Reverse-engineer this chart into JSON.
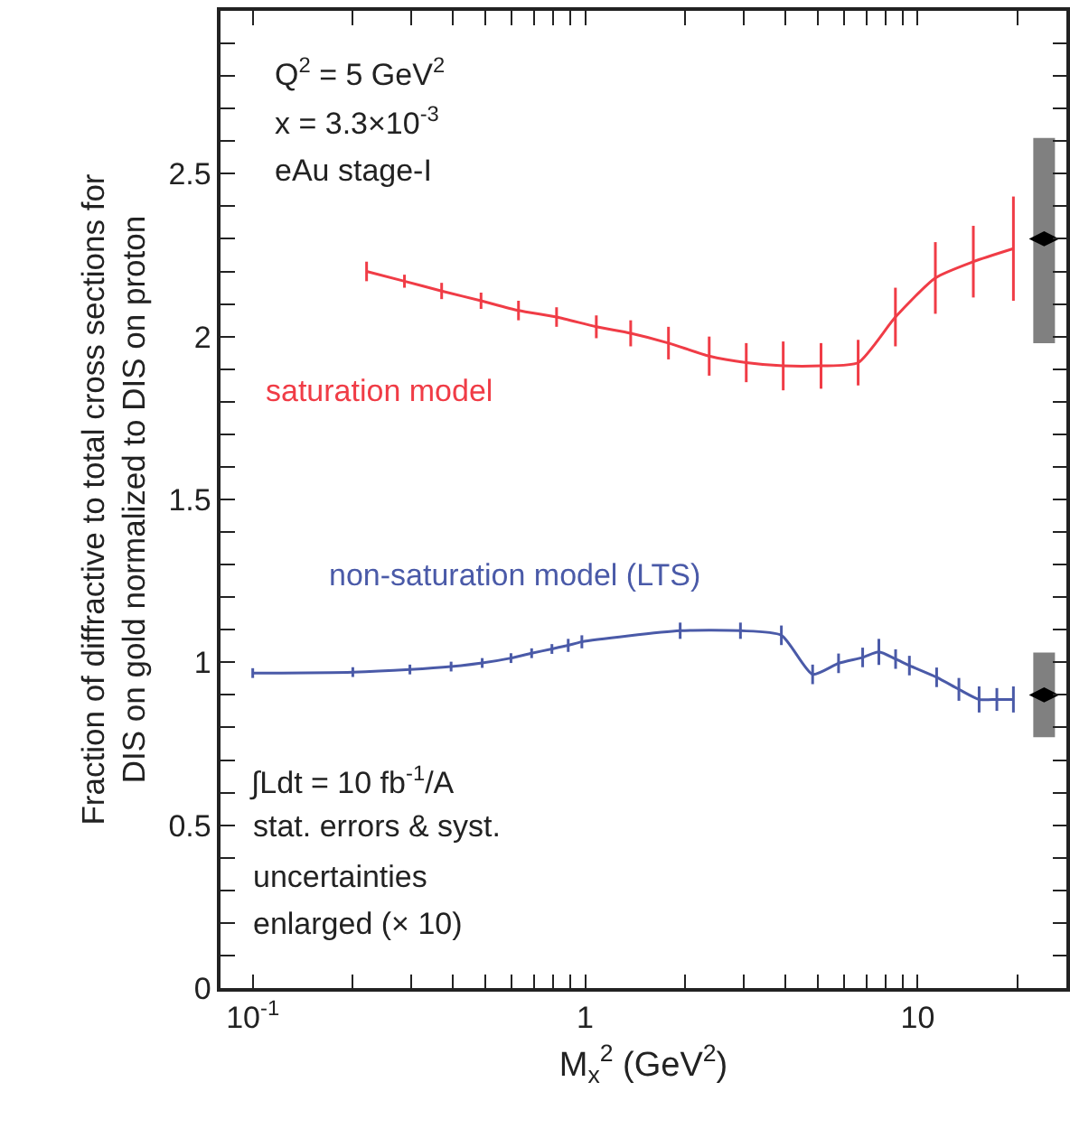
{
  "chart_data": {
    "type": "line",
    "xlabel": "M$_{x}$$^{2}$ (GeV$^{2}$)",
    "ylabel": "Fraction of diffractive to total cross sections for\nDIS on gold normalized to DIS on proton",
    "annotations": [
      "Q$^{2}$ = 5 GeV$^{2}$",
      "x = 3.3×10$^{-3}$",
      "eAu stage-I",
      "∫Ldt = 10 fb$^{-1}$/A",
      "stat. errors & syst.",
      "uncertainties",
      "enlarged (× 10)"
    ],
    "log": "x",
    "grid": false,
    "legend": false,
    "marker": "none",
    "line_style": "solid",
    "xlim": [
      0.08,
      28
    ],
    "ylim": [
      0,
      3
    ],
    "xticks": [
      {
        "value": 0.1,
        "label": "10$^{-1}$"
      },
      {
        "value": 0.2,
        "label": null
      },
      {
        "value": 0.3,
        "label": null
      },
      {
        "value": 0.4,
        "label": null
      },
      {
        "value": 0.5,
        "label": null
      },
      {
        "value": 0.6,
        "label": null
      },
      {
        "value": 0.7,
        "label": null
      },
      {
        "value": 0.8,
        "label": null
      },
      {
        "value": 0.9,
        "label": null
      },
      1,
      {
        "value": 2,
        "label": null
      },
      {
        "value": 3,
        "label": null
      },
      {
        "value": 4,
        "label": null
      },
      {
        "value": 5,
        "label": null
      },
      {
        "value": 6,
        "label": null
      },
      {
        "value": 7,
        "label": null
      },
      {
        "value": 8,
        "label": null
      },
      {
        "value": 9,
        "label": null
      },
      10,
      {
        "value": 20,
        "label": null
      }
    ],
    "yticks": [
      0,
      {
        "value": 0.1,
        "label": null
      },
      {
        "value": 0.2,
        "label": null
      },
      {
        "value": 0.3,
        "label": null
      },
      {
        "value": 0.4,
        "label": null
      },
      0.5,
      {
        "value": 0.6,
        "label": null
      },
      {
        "value": 0.7,
        "label": null
      },
      {
        "value": 0.8,
        "label": null
      },
      {
        "value": 0.9,
        "label": null
      },
      1,
      {
        "value": 1.1,
        "label": null
      },
      {
        "value": 1.2,
        "label": null
      },
      {
        "value": 1.3,
        "label": null
      },
      {
        "value": 1.4,
        "label": null
      },
      1.5,
      {
        "value": 1.6,
        "label": null
      },
      {
        "value": 1.7,
        "label": null
      },
      {
        "value": 1.8,
        "label": null
      },
      {
        "value": 1.9,
        "label": null
      },
      2,
      {
        "value": 2.1,
        "label": null
      },
      {
        "value": 2.2,
        "label": null
      },
      {
        "value": 2.3,
        "label": null
      },
      {
        "value": 2.4,
        "label": null
      },
      2.5,
      {
        "value": 2.6,
        "label": null
      },
      {
        "value": 2.7,
        "label": null
      },
      {
        "value": 2.8,
        "label": null
      },
      {
        "value": 2.9,
        "label": null
      }
    ],
    "series": [
      {
        "name": "saturation model",
        "color": "#f03c46",
        "x": [
          0.22,
          0.286,
          0.37,
          0.486,
          0.63,
          0.82,
          1.08,
          1.37,
          1.78,
          2.36,
          3.05,
          3.94,
          5.12,
          6.62,
          8.57,
          11.3,
          14.7,
          19.4
        ],
        "values": [
          2.2,
          2.17,
          2.14,
          2.11,
          2.08,
          2.06,
          2.03,
          2.01,
          1.98,
          1.94,
          1.92,
          1.91,
          1.91,
          1.92,
          2.06,
          2.18,
          2.23,
          2.27
        ],
        "errors": [
          0.03,
          0.02,
          0.025,
          0.025,
          0.03,
          0.03,
          0.035,
          0.04,
          0.05,
          0.06,
          0.06,
          0.075,
          0.07,
          0.07,
          0.09,
          0.11,
          0.11,
          0.16
        ]
      },
      {
        "name": "non-saturation model (LTS)",
        "color": "#4a5aa8",
        "x": [
          0.1,
          0.2,
          0.297,
          0.395,
          0.49,
          0.598,
          0.69,
          0.794,
          0.889,
          0.977,
          1.93,
          2.93,
          3.89,
          4.83,
          5.78,
          6.83,
          7.64,
          8.58,
          9.44,
          11.4,
          13.3,
          15.3,
          17.3,
          19.4
        ],
        "values": [
          0.967,
          0.97,
          0.978,
          0.987,
          0.998,
          1.013,
          1.028,
          1.041,
          1.052,
          1.063,
          1.097,
          1.097,
          1.083,
          0.963,
          0.997,
          1.015,
          1.032,
          1.01,
          0.99,
          0.954,
          0.917,
          0.886,
          0.886,
          0.886
        ],
        "errors": [
          0.015,
          0.015,
          0.015,
          0.015,
          0.015,
          0.015,
          0.015,
          0.015,
          0.02,
          0.02,
          0.025,
          0.025,
          0.03,
          0.03,
          0.03,
          0.03,
          0.04,
          0.03,
          0.03,
          0.03,
          0.035,
          0.04,
          0.035,
          0.04
        ]
      },
      {
        "type": "scatter",
        "color": "#000000",
        "marker": "diamond",
        "x": [
          24
        ],
        "values": [
          2.3
        ],
        "errors": [
          [
            1.98,
            2.61
          ]
        ]
      },
      {
        "type": "scatter",
        "color": "#000000",
        "marker": "diamond",
        "x": [
          24
        ],
        "values": [
          0.9
        ],
        "errors": [
          [
            0.77,
            1.03
          ]
        ]
      }
    ]
  }
}
